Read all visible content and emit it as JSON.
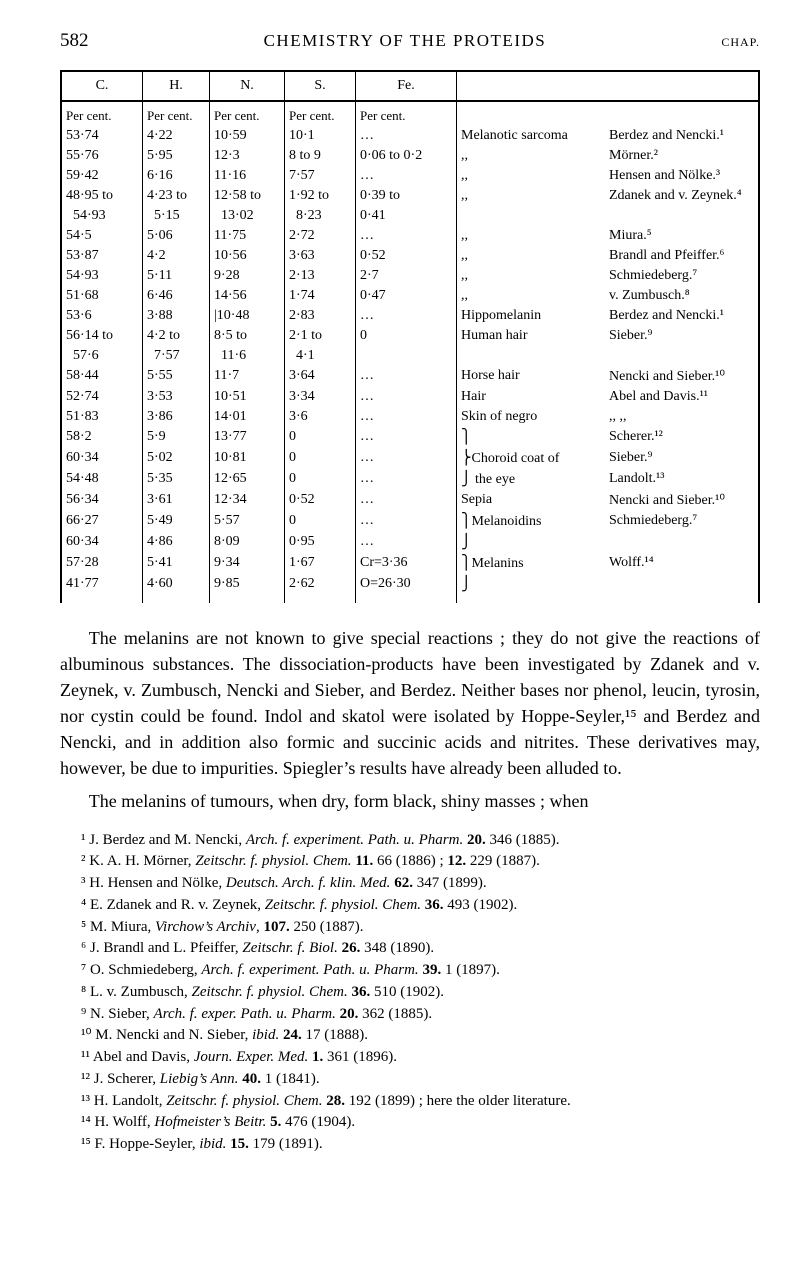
{
  "page_number": "582",
  "running_title": "CHEMISTRY OF THE PROTEIDS",
  "chap": "CHAP.",
  "table": {
    "columns": [
      "C.",
      "H.",
      "N.",
      "S.",
      "Fe.",
      "",
      ""
    ],
    "subhead": [
      "Per cent.",
      "Per cent.",
      "Per cent.",
      "Per cent.",
      "Per cent.",
      "",
      ""
    ],
    "rows": [
      [
        "53·74",
        "4·22",
        "10·59",
        "10·1",
        "…",
        "Melanotic sarcoma",
        "Berdez and Nencki.¹"
      ],
      [
        "55·76",
        "5·95",
        "12·3",
        "8 to 9",
        "0·06 to 0·2",
        ",,",
        "Mörner.²"
      ],
      [
        "59·42",
        "6·16",
        "11·16",
        "7·57",
        "…",
        ",,",
        "Hensen and Nölke.³"
      ],
      [
        "48·95 to",
        "4·23 to",
        "12·58 to",
        "1·92 to",
        "0·39 to",
        ",,",
        "Zdanek and v. Zeynek.⁴"
      ],
      [
        "  54·93",
        "  5·15",
        "  13·02",
        "  8·23",
        "0·41",
        "",
        ""
      ],
      [
        "54·5",
        "5·06",
        "11·75",
        "2·72",
        "…",
        ",,",
        "Miura.⁵"
      ],
      [
        "53·87",
        "4·2",
        "10·56",
        "3·63",
        "0·52",
        ",,",
        "Brandl and Pfeiffer.⁶"
      ],
      [
        "54·93",
        "5·11",
        "9·28",
        "2·13",
        "2·7",
        ",,",
        "Schmiedeberg.⁷"
      ],
      [
        "51·68",
        "6·46",
        "14·56",
        "1·74",
        "0·47",
        ",,",
        "v. Zumbusch.⁸"
      ],
      [
        "53·6",
        "3·88",
        "|10·48",
        "2·83",
        "…",
        "Hippomelanin",
        "Berdez and Nencki.¹"
      ],
      [
        "56·14 to",
        "4·2 to",
        "8·5 to",
        "2·1 to",
        "0",
        "Human hair",
        "Sieber.⁹"
      ],
      [
        "  57·6",
        "  7·57",
        "  11·6",
        "  4·1",
        "",
        "",
        ""
      ],
      [
        "58·44",
        "5·55",
        "11·7",
        "3·64",
        "…",
        "Horse hair",
        "Nencki and Sieber.¹⁰"
      ],
      [
        "52·74",
        "3·53",
        "10·51",
        "3·34",
        "…",
        "Hair",
        "Abel and Davis.¹¹"
      ],
      [
        "51·83",
        "3·86",
        "14·01",
        "3·6",
        "…",
        "Skin of negro",
        "       ,,         ,,"
      ],
      [
        "58·2",
        "5·9",
        "13·77",
        "0",
        "…",
        "⎫",
        "Scherer.¹²"
      ],
      [
        "60·34",
        "5·02",
        "10·81",
        "0",
        "…",
        "⎬Choroid coat of",
        "Sieber.⁹"
      ],
      [
        "54·48",
        "5·35",
        "12·65",
        "0",
        "…",
        "⎭  the eye",
        "Landolt.¹³"
      ],
      [
        "56·34",
        "3·61",
        "12·34",
        "0·52",
        "…",
        "Sepia",
        "Nencki and Sieber.¹⁰"
      ],
      [
        "66·27",
        "5·49",
        "5·57",
        "0",
        "…",
        "⎫Melanoidins",
        "Schmiedeberg.⁷"
      ],
      [
        "60·34",
        "4·86",
        "8·09",
        "0·95",
        "…",
        "⎭",
        ""
      ],
      [
        "57·28",
        "5·41",
        "9·34",
        "1·67",
        "Cr=3·36",
        "⎫Melanins",
        "Wolff.¹⁴"
      ],
      [
        "41·77",
        "4·60",
        "9·85",
        "2·62",
        "O=26·30",
        "⎭",
        ""
      ]
    ]
  },
  "para1": "The melanins are not known to give special reactions ; they do not give the reactions of albuminous substances.  The dissociation-products have been investigated by Zdanek and v. Zeynek, v. Zumbusch, Nencki and Sieber, and Berdez.  Neither bases nor phenol, leucin, tyrosin, nor cystin could be found.  Indol and skatol were isolated by Hoppe-Seyler,¹⁵ and Berdez and Nencki, and in addition also formic and succinic acids and nitrites.  These derivatives may, however, be due to impurities.  Spiegler’s results have already been alluded to.",
  "para2": "The melanins of tumours, when dry, form black, shiny masses ; when",
  "refs": [
    "¹ J. Berdez and M. Nencki, <em>Arch. f. experiment. Path. u. Pharm.</em> <b>20.</b> 346 (1885).",
    "² K. A. H. Mörner, <em>Zeitschr. f. physiol. Chem.</em> <b>11.</b> 66 (1886) ; <b>12.</b> 229 (1887).",
    "³ H. Hensen and Nölke, <em>Deutsch. Arch. f. klin. Med.</em> <b>62.</b> 347 (1899).",
    "⁴ E. Zdanek and R. v. Zeynek, <em>Zeitschr. f. physiol. Chem.</em> <b>36.</b> 493 (1902).",
    "⁵ M. Miura, <em>Virchow’s Archiv</em>, <b>107.</b> 250 (1887).",
    "⁶ J. Brandl and L. Pfeiffer, <em>Zeitschr. f. Biol.</em> <b>26.</b> 348 (1890).",
    "⁷ O. Schmiedeberg, <em>Arch. f. experiment. Path. u. Pharm.</em> <b>39.</b> 1 (1897).",
    "⁸ L. v. Zumbusch, <em>Zeitschr. f. physiol. Chem.</em> <b>36.</b> 510 (1902).",
    "⁹ N. Sieber, <em>Arch. f. exper. Path. u. Pharm.</em> <b>20.</b> 362 (1885).",
    "¹⁰ M. Nencki and N. Sieber, <em>ibid.</em> <b>24.</b> 17 (1888).",
    "¹¹ Abel and Davis, <em>Journ. Exper. Med.</em> <b>1.</b> 361 (1896).",
    "¹² J. Scherer, <em>Liebig’s Ann.</em> <b>40.</b> 1 (1841).",
    "¹³ H. Landolt, <em>Zeitschr. f. physiol. Chem.</em> <b>28.</b> 192 (1899) ; here the older literature.",
    "¹⁴ H. Wolff, <em>Hofmeister’s Beitr.</em> <b>5.</b> 476 (1904).",
    "¹⁵ F. Hoppe-Seyler, <em>ibid.</em> <b>15.</b> 179 (1891)."
  ]
}
